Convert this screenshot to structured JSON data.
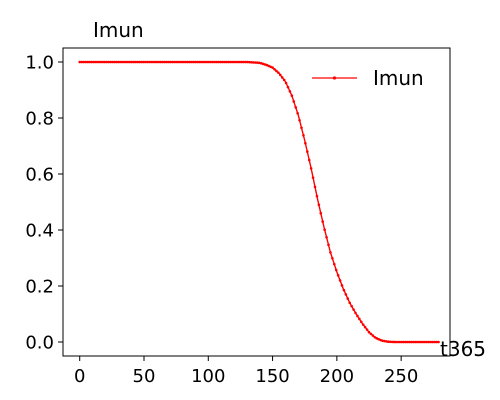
{
  "chart_data": {
    "type": "line",
    "title": "",
    "ylabel_top": "Imun",
    "xlabel": "t365",
    "xlim": [
      -13,
      288
    ],
    "ylim": [
      -0.05,
      1.05
    ],
    "x_ticks": [
      0,
      50,
      100,
      150,
      200,
      250
    ],
    "y_ticks": [
      0.0,
      0.2,
      0.4,
      0.6,
      0.8,
      1.0
    ],
    "x_tick_labels": [
      "0",
      "50",
      "100",
      "150",
      "200",
      "250"
    ],
    "y_tick_labels": [
      "0.0",
      "0.2",
      "0.4",
      "0.6",
      "0.8",
      "1.0"
    ],
    "grid": false,
    "legend": {
      "placement": "top-right",
      "entries": [
        "Imun"
      ]
    },
    "series": [
      {
        "name": "Imun",
        "color": "#ff0000",
        "marker": "dot",
        "x": [
          0,
          20,
          40,
          60,
          80,
          100,
          120,
          130,
          140,
          145,
          150,
          155,
          160,
          165,
          170,
          175,
          180,
          185,
          190,
          195,
          200,
          205,
          210,
          215,
          220,
          225,
          230,
          235,
          240,
          245,
          250,
          260,
          270,
          280
        ],
        "y": [
          1.0,
          1.0,
          1.0,
          1.0,
          1.0,
          1.0,
          1.0,
          1.0,
          0.997,
          0.99,
          0.98,
          0.96,
          0.93,
          0.88,
          0.81,
          0.72,
          0.62,
          0.51,
          0.41,
          0.32,
          0.25,
          0.19,
          0.14,
          0.1,
          0.065,
          0.035,
          0.015,
          0.005,
          0.001,
          0.0,
          0.0,
          0.0,
          0.0,
          0.0
        ]
      }
    ]
  }
}
